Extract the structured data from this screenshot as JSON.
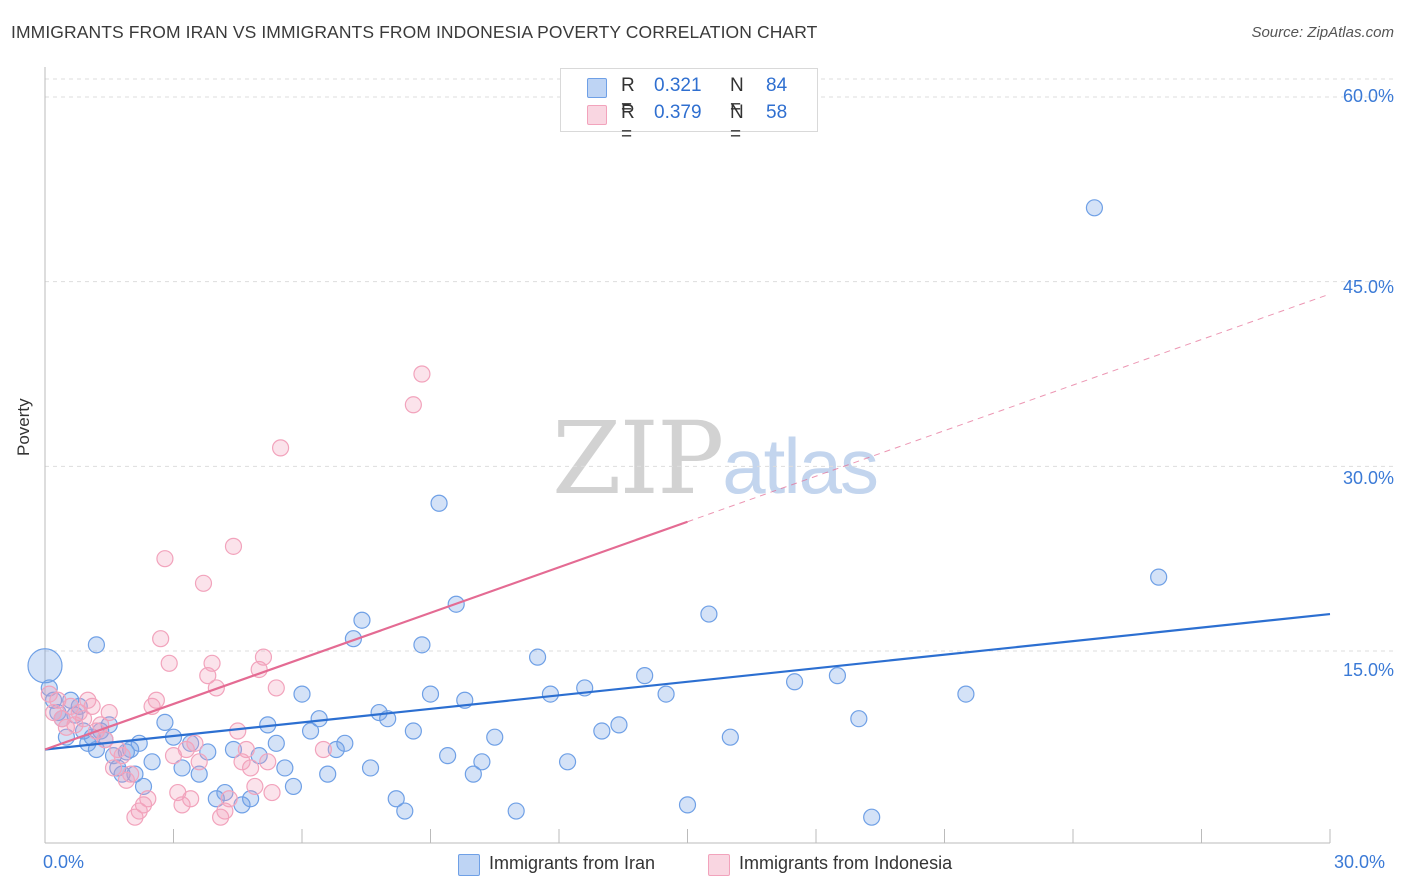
{
  "title": "IMMIGRANTS FROM IRAN VS IMMIGRANTS FROM INDONESIA POVERTY CORRELATION CHART",
  "source": "Source: ZipAtlas.com",
  "watermark": {
    "zip": "ZIP",
    "atlas": "atlas"
  },
  "legend_top": {
    "rows": [
      {
        "r_label": "R =",
        "r_value": "0.321",
        "n_label": "N =",
        "n_value": "84"
      },
      {
        "r_label": "R =",
        "r_value": "0.379",
        "n_label": "N =",
        "n_value": "58"
      }
    ]
  },
  "colors": {
    "iran": "#6fa0e6",
    "iran_line": "#2c6fd1",
    "indonesia": "#f2a3bc",
    "indonesia_line": "#e46b93",
    "tick_text": "#3b7ad6",
    "grid": "#dddddd"
  },
  "chart_data": {
    "type": "scatter",
    "title": "IMMIGRANTS FROM IRAN VS IMMIGRANTS FROM INDONESIA POVERTY CORRELATION CHART",
    "xlabel": "",
    "ylabel": "Poverty",
    "xlim": [
      0,
      30
    ],
    "ylim": [
      0,
      60
    ],
    "x_tick_labels": [
      "0.0%",
      "30.0%"
    ],
    "y_ticks": [
      15,
      30,
      45,
      60
    ],
    "y_tick_labels": [
      "15.0%",
      "30.0%",
      "45.0%",
      "60.0%"
    ],
    "legend": [
      "Immigrants from Iran",
      "Immigrants from Indonesia"
    ],
    "series": [
      {
        "name": "Immigrants from Iran",
        "r": 0.321,
        "n": 84,
        "trend": {
          "x0": 0,
          "y0": 7.0,
          "x1": 30,
          "y1": 18.0,
          "dashed_from": null
        },
        "points": [
          [
            0.0,
            13.8
          ],
          [
            0.1,
            12.0
          ],
          [
            0.2,
            11.0
          ],
          [
            0.3,
            10.0
          ],
          [
            0.4,
            9.5
          ],
          [
            0.5,
            8.0
          ],
          [
            0.6,
            11.0
          ],
          [
            0.7,
            9.8
          ],
          [
            0.8,
            10.5
          ],
          [
            0.9,
            8.5
          ],
          [
            1.0,
            7.5
          ],
          [
            1.1,
            8.0
          ],
          [
            1.2,
            7.0
          ],
          [
            1.3,
            8.5
          ],
          [
            1.4,
            7.8
          ],
          [
            1.5,
            9.0
          ],
          [
            1.6,
            6.5
          ],
          [
            1.7,
            5.5
          ],
          [
            1.8,
            5.0
          ],
          [
            1.9,
            6.8
          ],
          [
            2.0,
            7.0
          ],
          [
            2.1,
            5.0
          ],
          [
            2.2,
            7.5
          ],
          [
            2.3,
            4.0
          ],
          [
            2.5,
            6.0
          ],
          [
            2.8,
            9.2
          ],
          [
            3.0,
            8.0
          ],
          [
            3.2,
            5.5
          ],
          [
            3.4,
            7.5
          ],
          [
            3.6,
            5.0
          ],
          [
            3.8,
            6.8
          ],
          [
            4.0,
            3.0
          ],
          [
            4.2,
            3.5
          ],
          [
            4.4,
            7.0
          ],
          [
            4.6,
            2.5
          ],
          [
            4.8,
            3.0
          ],
          [
            5.0,
            6.5
          ],
          [
            5.2,
            9.0
          ],
          [
            5.4,
            7.5
          ],
          [
            5.6,
            5.5
          ],
          [
            5.8,
            4.0
          ],
          [
            6.0,
            11.5
          ],
          [
            6.2,
            8.5
          ],
          [
            6.4,
            9.5
          ],
          [
            6.6,
            5.0
          ],
          [
            6.8,
            7.0
          ],
          [
            7.0,
            7.5
          ],
          [
            7.2,
            16.0
          ],
          [
            7.4,
            17.5
          ],
          [
            7.6,
            5.5
          ],
          [
            7.8,
            10.0
          ],
          [
            8.0,
            9.5
          ],
          [
            8.2,
            3.0
          ],
          [
            8.4,
            2.0
          ],
          [
            8.6,
            8.5
          ],
          [
            8.8,
            15.5
          ],
          [
            9.0,
            11.5
          ],
          [
            9.2,
            27.0
          ],
          [
            9.4,
            6.5
          ],
          [
            9.6,
            18.8
          ],
          [
            9.8,
            11.0
          ],
          [
            10.0,
            5.0
          ],
          [
            10.2,
            6.0
          ],
          [
            10.5,
            8.0
          ],
          [
            11.0,
            2.0
          ],
          [
            11.5,
            14.5
          ],
          [
            11.8,
            11.5
          ],
          [
            12.2,
            6.0
          ],
          [
            12.6,
            12.0
          ],
          [
            13.0,
            8.5
          ],
          [
            13.4,
            9.0
          ],
          [
            14.0,
            13.0
          ],
          [
            14.5,
            11.5
          ],
          [
            15.0,
            2.5
          ],
          [
            15.5,
            18.0
          ],
          [
            16.0,
            8.0
          ],
          [
            1.2,
            15.5
          ],
          [
            17.5,
            12.5
          ],
          [
            18.5,
            13.0
          ],
          [
            19.0,
            9.5
          ],
          [
            19.3,
            1.5
          ],
          [
            21.5,
            11.5
          ],
          [
            24.5,
            51.0
          ],
          [
            26.0,
            21.0
          ]
        ]
      },
      {
        "name": "Immigrants from Indonesia",
        "r": 0.379,
        "n": 58,
        "trend": {
          "x0": 0,
          "y0": 7.0,
          "x1": 30,
          "y1": 44.0,
          "dashed_from": 15.0
        },
        "points": [
          [
            0.1,
            11.5
          ],
          [
            0.2,
            10.0
          ],
          [
            0.3,
            11.0
          ],
          [
            0.4,
            9.5
          ],
          [
            0.5,
            8.8
          ],
          [
            0.6,
            10.5
          ],
          [
            0.7,
            9.0
          ],
          [
            0.8,
            10.0
          ],
          [
            0.9,
            9.5
          ],
          [
            1.0,
            11.0
          ],
          [
            1.1,
            10.5
          ],
          [
            1.2,
            8.5
          ],
          [
            1.3,
            9.0
          ],
          [
            1.4,
            7.8
          ],
          [
            1.5,
            10.0
          ],
          [
            1.6,
            5.5
          ],
          [
            1.7,
            7.0
          ],
          [
            1.8,
            6.5
          ],
          [
            1.9,
            4.5
          ],
          [
            2.0,
            5.0
          ],
          [
            2.1,
            1.5
          ],
          [
            2.2,
            2.0
          ],
          [
            2.3,
            2.5
          ],
          [
            2.4,
            3.0
          ],
          [
            2.5,
            10.5
          ],
          [
            2.6,
            11.0
          ],
          [
            2.7,
            16.0
          ],
          [
            2.8,
            22.5
          ],
          [
            2.9,
            14.0
          ],
          [
            3.0,
            6.5
          ],
          [
            3.1,
            3.5
          ],
          [
            3.2,
            2.5
          ],
          [
            3.3,
            7.0
          ],
          [
            3.4,
            3.0
          ],
          [
            3.5,
            7.5
          ],
          [
            3.6,
            6.0
          ],
          [
            3.7,
            20.5
          ],
          [
            3.8,
            13.0
          ],
          [
            3.9,
            14.0
          ],
          [
            4.0,
            12.0
          ],
          [
            4.1,
            1.5
          ],
          [
            4.2,
            2.0
          ],
          [
            4.3,
            3.0
          ],
          [
            4.4,
            23.5
          ],
          [
            4.5,
            8.5
          ],
          [
            4.6,
            6.0
          ],
          [
            4.7,
            7.0
          ],
          [
            4.8,
            5.5
          ],
          [
            4.9,
            4.0
          ],
          [
            5.0,
            13.5
          ],
          [
            5.1,
            14.5
          ],
          [
            5.2,
            6.0
          ],
          [
            5.3,
            3.5
          ],
          [
            5.4,
            12.0
          ],
          [
            5.5,
            31.5
          ],
          [
            6.5,
            7.0
          ],
          [
            8.8,
            37.5
          ],
          [
            8.6,
            35.0
          ]
        ]
      }
    ]
  },
  "legend_bottom": {
    "items": [
      "Immigrants from Iran",
      "Immigrants from Indonesia"
    ]
  },
  "axes": {
    "x_left_label": "0.0%",
    "x_right_label": "30.0%",
    "y_label": "Poverty"
  }
}
